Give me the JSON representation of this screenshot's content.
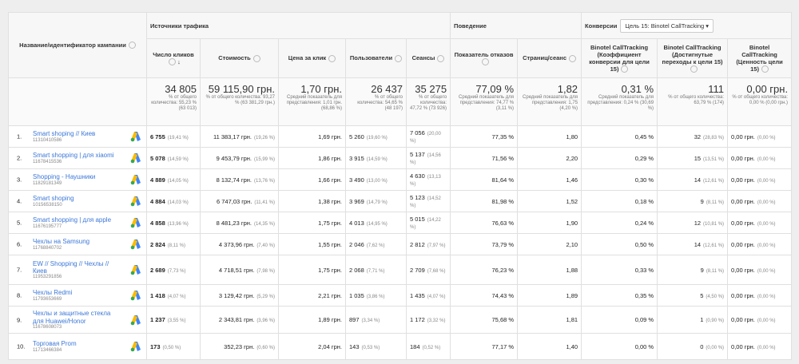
{
  "header": {
    "group_traffic": "Источники трафика",
    "group_behavior": "Поведение",
    "group_conversions": "Конверсии",
    "goal_select": "Цель 15: Binotel CallTracking"
  },
  "columns": [
    "Название/идентификатор кампании",
    "Число кликов",
    "Стоимость",
    "Цена за клик",
    "Пользователи",
    "Сеансы",
    "Показатель отказов",
    "Страниц/сеанс",
    "Binotel CallTracking (Коэффициент конверсии для цели 15)",
    "Binotel CallTracking (Достигнутые переходы к цели 15)",
    "Binotel CallTracking (Ценность цели 15)"
  ],
  "totals": [
    {
      "value": "34 805",
      "note": "% от общего количества: 55,23 % (63 013)"
    },
    {
      "value": "59 115,90 грн.",
      "note": "% от общего количества: 93,27 % (63 381,29 грн.)"
    },
    {
      "value": "1,70 грн.",
      "note": "Средний показатель для представления: 1,01 грн. (68,86 %)"
    },
    {
      "value": "26 437",
      "note": "% от общего количества: 54,65 % (48 197)"
    },
    {
      "value": "35 275",
      "note": "% от общего количества: 47,72 % (73 926)"
    },
    {
      "value": "77,09 %",
      "note": "Средний показатель для представления: 74,77 % (3,11 %)"
    },
    {
      "value": "1,82",
      "note": "Средний показатель для представления: 1,75 (4,20 %)"
    },
    {
      "value": "0,31 %",
      "note": "Средний показатель для представления: 0,24 % (30,69 %)"
    },
    {
      "value": "111",
      "note": "% от общего количества: 63,79 % (174)"
    },
    {
      "value": "0,00 грн.",
      "note": "% от общего количества: 0,00 % (0,00 грн.)"
    }
  ],
  "rows": [
    [
      "1.",
      "Smart shoping // Киев",
      "11310410586",
      "6 755",
      "(19,41 %)",
      "11 383,17 грн.",
      "(19,26 %)",
      "1,69 грн.",
      "5 260",
      "(19,60 %)",
      "7 056",
      "(20,00 %)",
      "77,35 %",
      "1,80",
      "0,45 %",
      "32",
      "(28,83 %)",
      "0,00 грн.",
      "(0,00 %)"
    ],
    [
      "2.",
      "Smart shopping | для xiaomi",
      "11678415536",
      "5 078",
      "(14,59 %)",
      "9 453,79 грн.",
      "(15,99 %)",
      "1,86 грн.",
      "3 915",
      "(14,59 %)",
      "5 137",
      "(14,56 %)",
      "71,56 %",
      "2,20",
      "0,29 %",
      "15",
      "(13,51 %)",
      "0,00 грн.",
      "(0,00 %)"
    ],
    [
      "3.",
      "Shopping - Наушники",
      "11829181349",
      "4 889",
      "(14,05 %)",
      "8 132,74 грн.",
      "(13,76 %)",
      "1,66 грн.",
      "3 490",
      "(13,00 %)",
      "4 630",
      "(13,13 %)",
      "81,64 %",
      "1,46",
      "0,30 %",
      "14",
      "(12,61 %)",
      "0,00 грн.",
      "(0,00 %)"
    ],
    [
      "4.",
      "Smart shoping",
      "10156538150",
      "4 884",
      "(14,03 %)",
      "6 747,03 грн.",
      "(11,41 %)",
      "1,38 грн.",
      "3 969",
      "(14,79 %)",
      "5 123",
      "(14,52 %)",
      "81,98 %",
      "1,52",
      "0,18 %",
      "9",
      "(8,11 %)",
      "0,00 грн.",
      "(0,00 %)"
    ],
    [
      "5.",
      "Smart shopping | для apple",
      "11676195777",
      "4 858",
      "(13,96 %)",
      "8 481,23 грн.",
      "(14,35 %)",
      "1,75 грн.",
      "4 013",
      "(14,95 %)",
      "5 015",
      "(14,22 %)",
      "76,63 %",
      "1,90",
      "0,24 %",
      "12",
      "(10,81 %)",
      "0,00 грн.",
      "(0,00 %)"
    ],
    [
      "6.",
      "Чехлы на Samsung",
      "11768840702",
      "2 824",
      "(8,11 %)",
      "4 373,96 грн.",
      "(7,40 %)",
      "1,55 грн.",
      "2 046",
      "(7,62 %)",
      "2 812",
      "(7,97 %)",
      "73,79 %",
      "2,10",
      "0,50 %",
      "14",
      "(12,61 %)",
      "0,00 грн.",
      "(0,00 %)"
    ],
    [
      "7.",
      "EW // Shopping // Чехлы // Киев",
      "11953291856",
      "2 689",
      "(7,73 %)",
      "4 718,51 грн.",
      "(7,98 %)",
      "1,75 грн.",
      "2 068",
      "(7,71 %)",
      "2 709",
      "(7,68 %)",
      "76,23 %",
      "1,88",
      "0,33 %",
      "9",
      "(8,11 %)",
      "0,00 грн.",
      "(0,00 %)"
    ],
    [
      "8.",
      "Чехлы Redmi",
      "11793653669",
      "1 418",
      "(4,07 %)",
      "3 129,42 грн.",
      "(5,29 %)",
      "2,21 грн.",
      "1 035",
      "(3,86 %)",
      "1 435",
      "(4,07 %)",
      "74,43 %",
      "1,89",
      "0,35 %",
      "5",
      "(4,50 %)",
      "0,00 грн.",
      "(0,00 %)"
    ],
    [
      "9.",
      "Чехлы и защитные стекла для Huawei/Honor",
      "11678608073",
      "1 237",
      "(3,55 %)",
      "2 343,81 грн.",
      "(3,96 %)",
      "1,89 грн.",
      "897",
      "(3,34 %)",
      "1 172",
      "(3,32 %)",
      "75,68 %",
      "1,81",
      "0,09 %",
      "1",
      "(0,90 %)",
      "0,00 грн.",
      "(0,00 %)"
    ],
    [
      "10.",
      "Торговая Prom",
      "11713466384",
      "173",
      "(0,50 %)",
      "352,23 грн.",
      "(0,60 %)",
      "2,04 грн.",
      "143",
      "(0,53 %)",
      "184",
      "(0,52 %)",
      "77,17 %",
      "1,40",
      "0,00 %",
      "0",
      "(0,00 %)",
      "0,00 грн.",
      "(0,00 %)"
    ]
  ]
}
